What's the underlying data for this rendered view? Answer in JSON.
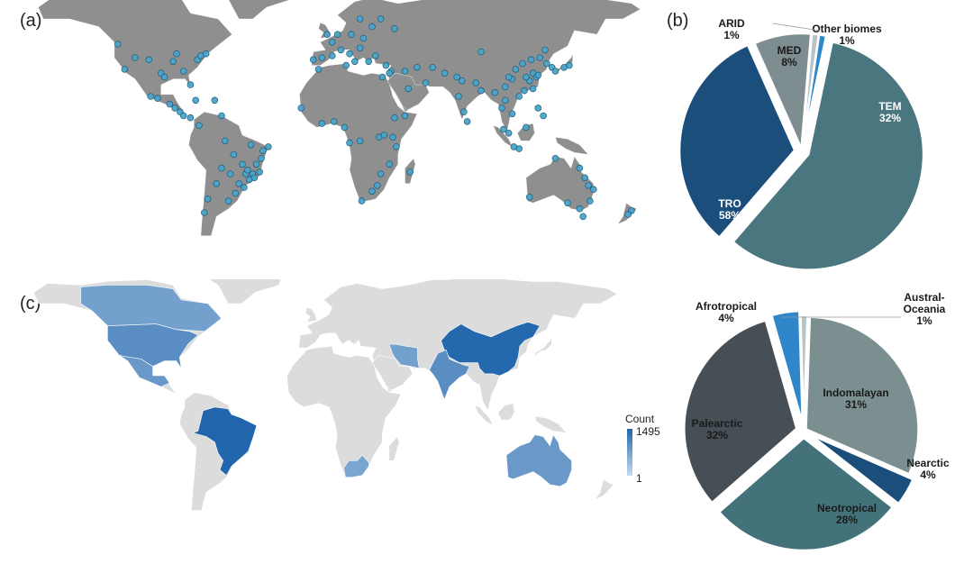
{
  "panels": {
    "a": "(a)",
    "b": "(b)",
    "c": "(c)"
  },
  "colors": {
    "land": "#8f8f8f",
    "points": "#4aa6c9",
    "points_stroke": "#1f5f80",
    "country_none": "#dcdcdc",
    "country_low": "#c6dbef",
    "country_high": "#2c6fab"
  },
  "choropleth_legend": {
    "title": "Count",
    "max": "1495",
    "min": "1"
  },
  "chart_data": [
    {
      "type": "scatter",
      "title": "",
      "description_type": "point map of study sites",
      "x_label": "",
      "y_label": "",
      "points_lonlat": [
        [
          -122,
          47
        ],
        [
          -118,
          34
        ],
        [
          -112,
          40
        ],
        [
          -104,
          39
        ],
        [
          -97,
          32
        ],
        [
          -90,
          38
        ],
        [
          -84,
          33
        ],
        [
          -80,
          26
        ],
        [
          -76,
          39
        ],
        [
          -74,
          41
        ],
        [
          -71,
          42
        ],
        [
          -88,
          42
        ],
        [
          -95,
          30
        ],
        [
          -99,
          19
        ],
        [
          -103,
          20
        ],
        [
          -92,
          16
        ],
        [
          -89,
          14
        ],
        [
          -86,
          12
        ],
        [
          -84,
          10
        ],
        [
          -80,
          9
        ],
        [
          -75,
          5
        ],
        [
          -77,
          18
        ],
        [
          -66,
          18
        ],
        [
          -62,
          10
        ],
        [
          -60,
          -3
        ],
        [
          -55,
          -10
        ],
        [
          -50,
          -15
        ],
        [
          -48,
          -20
        ],
        [
          -46,
          -23
        ],
        [
          -44,
          -20
        ],
        [
          -42,
          -15
        ],
        [
          -38,
          -8
        ],
        [
          -35,
          -6
        ],
        [
          -39,
          -12
        ],
        [
          -45,
          -5
        ],
        [
          -52,
          -25
        ],
        [
          -54,
          -30
        ],
        [
          -49,
          -27
        ],
        [
          -47,
          -18
        ],
        [
          -43,
          -22
        ],
        [
          -40,
          -19
        ],
        [
          -57,
          -20
        ],
        [
          -62,
          -17
        ],
        [
          -65,
          -25
        ],
        [
          -70,
          -33
        ],
        [
          -58,
          -34
        ],
        [
          -72,
          -40
        ],
        [
          -9,
          39
        ],
        [
          -4,
          40
        ],
        [
          2,
          41
        ],
        [
          7,
          44
        ],
        [
          12,
          42
        ],
        [
          15,
          38
        ],
        [
          18,
          45
        ],
        [
          23,
          38
        ],
        [
          27,
          41
        ],
        [
          33,
          36
        ],
        [
          36,
          33
        ],
        [
          -6,
          34
        ],
        [
          10,
          36
        ],
        [
          2,
          48
        ],
        [
          -1,
          52
        ],
        [
          5,
          52
        ],
        [
          13,
          52
        ],
        [
          20,
          50
        ],
        [
          25,
          56
        ],
        [
          30,
          60
        ],
        [
          38,
          55
        ],
        [
          18,
          60
        ],
        [
          31,
          30
        ],
        [
          35,
          32
        ],
        [
          44,
          33
        ],
        [
          46,
          24
        ],
        [
          51,
          35
        ],
        [
          56,
          27
        ],
        [
          60,
          35
        ],
        [
          67,
          32
        ],
        [
          74,
          30
        ],
        [
          77,
          28
        ],
        [
          75,
          20
        ],
        [
          78,
          12
        ],
        [
          80,
          7
        ],
        [
          88,
          23
        ],
        [
          85,
          27
        ],
        [
          96,
          22
        ],
        [
          100,
          14
        ],
        [
          102,
          18
        ],
        [
          106,
          11
        ],
        [
          104,
          1
        ],
        [
          101,
          3
        ],
        [
          110,
          -7
        ],
        [
          107,
          -6
        ],
        [
          114,
          4
        ],
        [
          121,
          14
        ],
        [
          124,
          10
        ],
        [
          106,
          29
        ],
        [
          108,
          34
        ],
        [
          113,
          23
        ],
        [
          116,
          28
        ],
        [
          118,
          32
        ],
        [
          120,
          30
        ],
        [
          121,
          31
        ],
        [
          117,
          39
        ],
        [
          112,
          37
        ],
        [
          104,
          30
        ],
        [
          102,
          25
        ],
        [
          110,
          20
        ],
        [
          126,
          37
        ],
        [
          129,
          35
        ],
        [
          136,
          35
        ],
        [
          139,
          36
        ],
        [
          131,
          33
        ],
        [
          118,
          24
        ],
        [
          114,
          30
        ],
        [
          122,
          40
        ],
        [
          125,
          44
        ],
        [
          88,
          43
        ],
        [
          -16,
          14
        ],
        [
          -4,
          6
        ],
        [
          3,
          7
        ],
        [
          9,
          4
        ],
        [
          12,
          -4
        ],
        [
          18,
          -3
        ],
        [
          29,
          -1
        ],
        [
          32,
          0
        ],
        [
          37,
          -1
        ],
        [
          39,
          -6
        ],
        [
          35,
          -15
        ],
        [
          30,
          -20
        ],
        [
          28,
          -26
        ],
        [
          25,
          -29
        ],
        [
          19,
          -34
        ],
        [
          47,
          -19
        ],
        [
          44,
          10
        ],
        [
          38,
          9
        ],
        [
          116,
          -32
        ],
        [
          138,
          -35
        ],
        [
          145,
          -38
        ],
        [
          151,
          -34
        ],
        [
          153,
          -28
        ],
        [
          148,
          -22
        ],
        [
          145,
          -17
        ],
        [
          131,
          -12
        ],
        [
          150,
          -26
        ],
        [
          147,
          -42
        ],
        [
          175,
          -39
        ],
        [
          173,
          -41
        ]
      ]
    },
    {
      "type": "pie",
      "title": "",
      "series": [
        {
          "label": "TRO",
          "value": 58,
          "text": "58%",
          "color": "#4a7680"
        },
        {
          "label": "TEM",
          "value": 32,
          "text": "32%",
          "color": "#1c4e7c"
        },
        {
          "label": "MED",
          "value": 8,
          "text": "8%",
          "color": "#7d8d90"
        },
        {
          "label": "Other biomes",
          "value": 1,
          "text": "1%",
          "color": "#b6c4c8"
        },
        {
          "label": "ARID",
          "value": 1,
          "text": "1%",
          "color": "#2f86c8"
        }
      ]
    },
    {
      "type": "heatmap",
      "title": "",
      "description_type": "choropleth of counts by country",
      "legend_title": "Count",
      "range": [
        1,
        1495
      ],
      "countries": [
        {
          "name": "China",
          "count": 1300
        },
        {
          "name": "Brazil",
          "count": 1495
        },
        {
          "name": "United States",
          "count": 120
        },
        {
          "name": "Canada",
          "count": 40
        },
        {
          "name": "Mexico",
          "count": 60
        },
        {
          "name": "India",
          "count": 120
        },
        {
          "name": "Australia",
          "count": 60
        },
        {
          "name": "Iran",
          "count": 40
        },
        {
          "name": "South Africa",
          "count": 30
        }
      ]
    },
    {
      "type": "pie",
      "title": "",
      "series": [
        {
          "label": "Indomalayan",
          "value": 31,
          "text": "31%",
          "color": "#7b8f90"
        },
        {
          "label": "Nearctic",
          "value": 4,
          "text": "4%",
          "color": "#1c4e7c"
        },
        {
          "label": "Neotropical",
          "value": 28,
          "text": "28%",
          "color": "#44727a"
        },
        {
          "label": "Palearctic",
          "value": 32,
          "text": "32%",
          "color": "#454f55"
        },
        {
          "label": "Afrotropical",
          "value": 4,
          "text": "4%",
          "color": "#2f86c8"
        },
        {
          "label": "Austral-Oceania",
          "label_lines": [
            "Austral-",
            "Oceania"
          ],
          "value": 1,
          "text": "1%",
          "color": "#b6c4c8"
        }
      ]
    }
  ]
}
